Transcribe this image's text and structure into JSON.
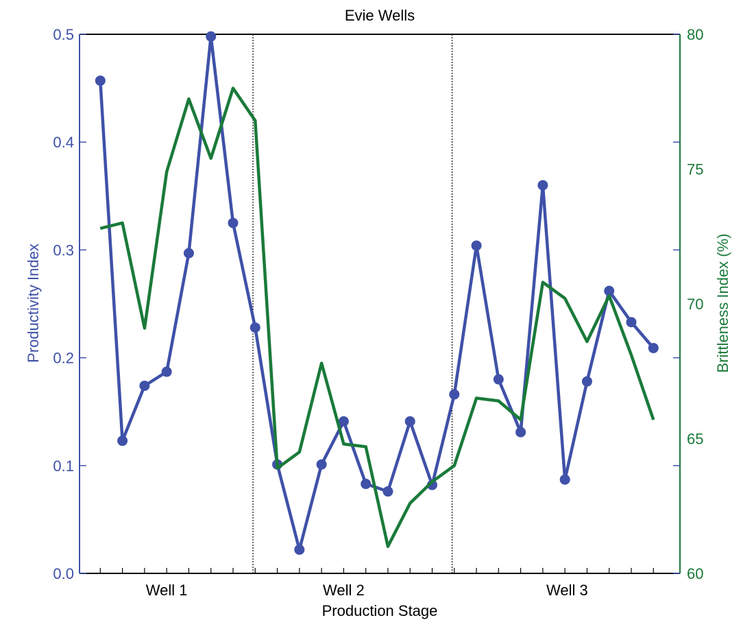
{
  "chart_data": {
    "type": "line",
    "title": "Evie Wells",
    "xlabel": "Production Stage",
    "y_left": {
      "label": "Productivity Index",
      "lim": [
        0,
        0.5
      ],
      "ticks": [
        "0.0",
        "0.1",
        "0.2",
        "0.3",
        "0.4",
        "0.5"
      ],
      "color": "#3f51a8"
    },
    "y_right": {
      "label": "Brittleness Index (%)",
      "lim": [
        60,
        80
      ],
      "ticks": [
        "60",
        "65",
        "70",
        "75",
        "80"
      ],
      "color": "#1a7a3a"
    },
    "x": [
      1,
      2,
      3,
      4,
      5,
      6,
      7,
      8,
      9,
      10,
      11,
      12,
      13,
      14,
      15,
      16,
      17,
      18,
      19,
      20,
      21,
      22,
      23,
      24,
      25,
      26
    ],
    "xlim": [
      0.06,
      27.2
    ],
    "groups": [
      {
        "label": "Well 1",
        "center": 4
      },
      {
        "label": "Well 2",
        "center": 12
      },
      {
        "label": "Well 3",
        "center": 22.1
      }
    ],
    "separators": [
      7.9,
      16.9
    ],
    "series": [
      {
        "axis": "left",
        "marker": "circle",
        "values": [
          0.457,
          0.123,
          0.174,
          0.187,
          0.297,
          0.498,
          0.325,
          0.228,
          0.101,
          0.022,
          0.101,
          0.141,
          0.083,
          0.076,
          0.141,
          0.082,
          0.166,
          0.304,
          0.18,
          0.131,
          0.36,
          0.087,
          0.178,
          0.262,
          0.233,
          0.209
        ]
      },
      {
        "axis": "right",
        "marker": "none",
        "values": [
          72.8,
          73.0,
          69.1,
          74.9,
          77.6,
          75.4,
          78.0,
          76.8,
          63.9,
          64.5,
          67.8,
          64.8,
          64.7,
          61.0,
          62.6,
          63.4,
          64.0,
          66.5,
          66.4,
          65.7,
          70.8,
          70.2,
          68.6,
          70.3,
          68.1,
          65.7
        ]
      }
    ],
    "grid": false
  }
}
